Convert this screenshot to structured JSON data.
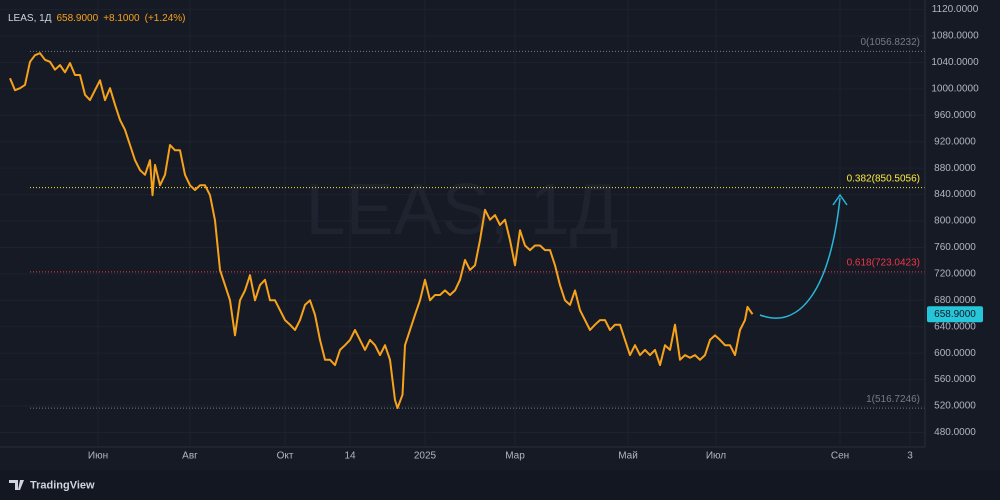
{
  "chart_data": {
    "type": "line",
    "title": "LEAS, 1Д",
    "last_price": {
      "value": 658.9,
      "label": "658.9000"
    },
    "change": "+8.1000",
    "change_pct": "(+1.24%)",
    "color": "#f7a21b",
    "grid": true,
    "x": [
      0,
      2,
      4,
      6,
      8,
      10,
      12,
      14,
      16,
      18,
      20,
      22,
      24,
      26,
      28,
      30,
      32,
      34,
      36,
      38,
      40,
      42,
      44,
      46,
      48,
      50,
      52,
      54,
      56,
      57,
      58,
      60,
      62,
      64,
      66,
      68,
      70,
      72,
      74,
      76,
      78,
      80,
      82,
      84,
      86,
      88,
      90,
      92,
      94,
      96,
      98,
      100,
      102,
      104,
      106,
      108,
      110,
      112,
      114,
      116,
      118,
      120,
      122,
      124,
      126,
      128,
      130,
      132,
      134,
      136,
      138,
      140,
      142,
      144,
      146,
      148,
      150,
      152,
      154,
      155,
      157,
      158,
      160,
      162,
      164,
      166,
      168,
      170,
      172,
      174,
      176,
      178,
      180,
      182,
      184,
      186,
      188,
      190,
      192,
      194,
      196,
      198,
      200,
      202,
      204,
      206,
      208,
      210,
      212,
      214,
      216,
      218,
      220,
      222,
      224,
      226,
      228,
      230,
      232,
      234,
      236,
      238,
      240,
      242,
      244,
      246,
      248,
      250,
      252,
      254,
      256,
      258,
      260,
      262,
      264,
      266,
      268,
      270,
      272,
      274,
      276,
      278,
      280,
      282,
      284,
      286,
      288,
      290,
      292,
      294,
      295,
      297
    ],
    "values": [
      1016,
      998,
      1001,
      1006,
      1041,
      1051,
      1054,
      1044,
      1041,
      1029,
      1036,
      1025,
      1039,
      1021,
      1021,
      991,
      983,
      998,
      1013,
      983,
      1001,
      976,
      953,
      938,
      915,
      892,
      877,
      870,
      892,
      839,
      885,
      854,
      870,
      915,
      907,
      907,
      870,
      854,
      847,
      854,
      854,
      839,
      801,
      726,
      703,
      680,
      627,
      680,
      695,
      718,
      680,
      703,
      711,
      680,
      680,
      665,
      650,
      643,
      635,
      650,
      673,
      680,
      658,
      620,
      590,
      590,
      582,
      605,
      612,
      620,
      635,
      620,
      605,
      620,
      612,
      597,
      612,
      590,
      529,
      517,
      537,
      612,
      635,
      658,
      680,
      711,
      680,
      688,
      688,
      695,
      688,
      695,
      711,
      741,
      726,
      733,
      771,
      817,
      802,
      809,
      794,
      802,
      771,
      733,
      786,
      763,
      756,
      763,
      763,
      756,
      756,
      733,
      703,
      680,
      673,
      695,
      665,
      650,
      635,
      643,
      650,
      650,
      635,
      643,
      643,
      620,
      597,
      612,
      597,
      605,
      597,
      605,
      582,
      612,
      605,
      643,
      590,
      597,
      593,
      597,
      590,
      597,
      620,
      627,
      620,
      612,
      612,
      597,
      635,
      650,
      670,
      658.9
    ],
    "xlim": [
      -4,
      366
    ],
    "xticks": [
      {
        "value": 35.2,
        "label": "Июн"
      },
      {
        "value": 72,
        "label": "Авг"
      },
      {
        "value": 110,
        "label": "Окт"
      },
      {
        "value": 136,
        "label": "14"
      },
      {
        "value": 166,
        "label": "2025"
      },
      {
        "value": 202,
        "label": "Мар"
      },
      {
        "value": 247.2,
        "label": "Май"
      },
      {
        "value": 282.4,
        "label": "Июл"
      },
      {
        "value": 332,
        "label": "Сен"
      },
      {
        "value": 360,
        "label": "3"
      }
    ],
    "ylim": [
      461,
      1134.5
    ],
    "yticks": [
      {
        "value": 480,
        "label": "480.0000"
      },
      {
        "value": 520,
        "label": "520.0000"
      },
      {
        "value": 560,
        "label": "560.0000"
      },
      {
        "value": 600,
        "label": "600.0000"
      },
      {
        "value": 640,
        "label": "640.0000"
      },
      {
        "value": 680,
        "label": "680.0000"
      },
      {
        "value": 720,
        "label": "720.0000"
      },
      {
        "value": 760,
        "label": "760.0000"
      },
      {
        "value": 800,
        "label": "800.0000"
      },
      {
        "value": 840,
        "label": "840.0000"
      },
      {
        "value": 880,
        "label": "880.0000"
      },
      {
        "value": 920,
        "label": "920.0000"
      },
      {
        "value": 960,
        "label": "960.0000"
      },
      {
        "value": 1000,
        "label": "1000.0000"
      },
      {
        "value": 1040,
        "label": "1040.0000"
      },
      {
        "value": 1080,
        "label": "1080.0000"
      },
      {
        "value": 1120,
        "label": "1120.0000"
      }
    ],
    "levels": [
      {
        "value": 1056.8232,
        "label": "0(1056.8232)",
        "color": "#787b86"
      },
      {
        "value": 850.5056,
        "label": "0.382(850.5056)",
        "color": "#ffeb3b"
      },
      {
        "value": 723.0423,
        "label": "0.618(723.0423)",
        "color": "#f23645"
      },
      {
        "value": 516.7246,
        "label": "1(516.7246)",
        "color": "#787b86"
      }
    ]
  },
  "branding": "TradingView"
}
